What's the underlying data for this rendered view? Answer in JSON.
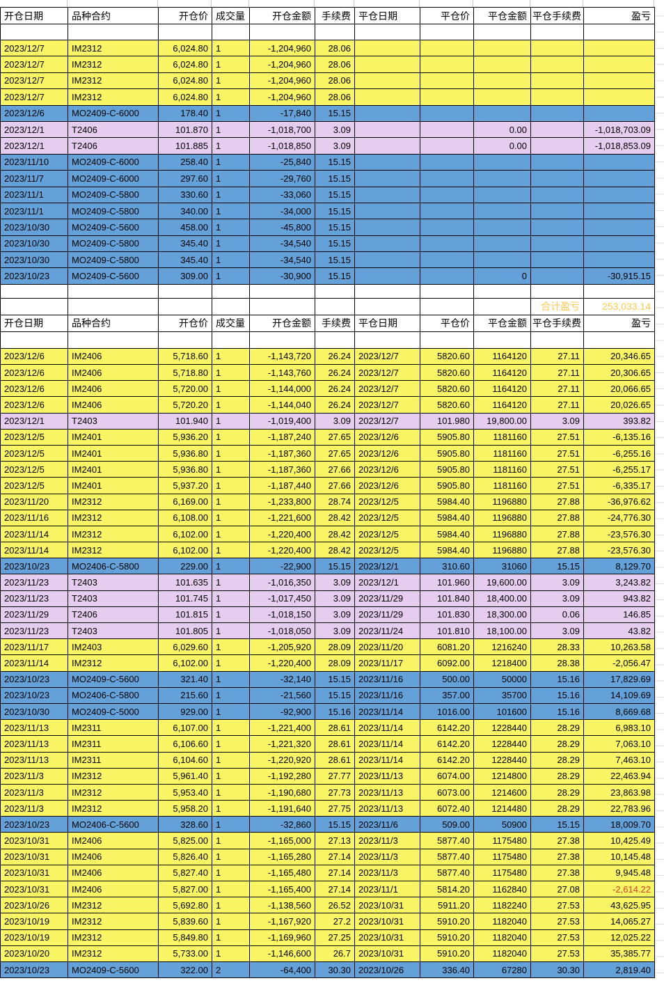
{
  "header": {
    "cols": [
      "开仓日期",
      "品种合约",
      "开仓价",
      "成交量",
      "开仓金额",
      "手续费",
      "平仓日期",
      "平仓价",
      "平仓金额",
      "平仓手续费",
      "盈亏"
    ]
  },
  "summary": {
    "label": "合计盈亏",
    "value": "253,033.14"
  },
  "colors": {
    "band_yellow": "#FAF565",
    "band_blue": "#64A1D9",
    "band_pink": "#E6CCEF",
    "total_bg": "#CF4F2E",
    "total_text": "#FFC94F",
    "negative_highlight": "#CC4125",
    "gridline": "#000000"
  },
  "table1": {
    "rows": [
      {
        "color": "yellow",
        "cells": [
          "2023/12/7",
          "IM2312",
          "6,024.80",
          "1",
          "-1,204,960",
          "28.06",
          "",
          "",
          "",
          "",
          ""
        ]
      },
      {
        "color": "yellow",
        "cells": [
          "2023/12/7",
          "IM2312",
          "6,024.80",
          "1",
          "-1,204,960",
          "28.06",
          "",
          "",
          "",
          "",
          ""
        ]
      },
      {
        "color": "yellow",
        "cells": [
          "2023/12/7",
          "IM2312",
          "6,024.80",
          "1",
          "-1,204,960",
          "28.06",
          "",
          "",
          "",
          "",
          ""
        ]
      },
      {
        "color": "yellow",
        "cells": [
          "2023/12/7",
          "IM2312",
          "6,024.80",
          "1",
          "-1,204,960",
          "28.06",
          "",
          "",
          "",
          "",
          ""
        ]
      },
      {
        "color": "blue",
        "cells": [
          "2023/12/6",
          "MO2409-C-6000",
          "178.40",
          "1",
          "-17,840",
          "15.15",
          "",
          "",
          "",
          "",
          ""
        ]
      },
      {
        "color": "pink",
        "cells": [
          "2023/12/1",
          "T2406",
          "101.870",
          "1",
          "-1,018,700",
          "3.09",
          "",
          "",
          "0.00",
          "",
          "-1,018,703.09"
        ]
      },
      {
        "color": "pink",
        "cells": [
          "2023/12/1",
          "T2406",
          "101.885",
          "1",
          "-1,018,850",
          "3.09",
          "",
          "",
          "0.00",
          "",
          "-1,018,853.09"
        ]
      },
      {
        "color": "blue",
        "cells": [
          "2023/11/10",
          "MO2409-C-6000",
          "258.40",
          "1",
          "-25,840",
          "15.15",
          "",
          "",
          "",
          "",
          ""
        ]
      },
      {
        "color": "blue",
        "cells": [
          "2023/11/7",
          "MO2409-C-6000",
          "297.60",
          "1",
          "-29,760",
          "15.15",
          "",
          "",
          "",
          "",
          ""
        ]
      },
      {
        "color": "blue",
        "cells": [
          "2023/11/1",
          "MO2409-C-5800",
          "330.60",
          "1",
          "-33,060",
          "15.15",
          "",
          "",
          "",
          "",
          ""
        ]
      },
      {
        "color": "blue",
        "cells": [
          "2023/11/1",
          "MO2409-C-5800",
          "340.00",
          "1",
          "-34,000",
          "15.15",
          "",
          "",
          "",
          "",
          ""
        ]
      },
      {
        "color": "blue",
        "cells": [
          "2023/10/30",
          "MO2409-C-5600",
          "458.00",
          "1",
          "-45,800",
          "15.15",
          "",
          "",
          "",
          "",
          ""
        ]
      },
      {
        "color": "blue",
        "cells": [
          "2023/10/30",
          "MO2409-C-5800",
          "345.40",
          "1",
          "-34,540",
          "15.15",
          "",
          "",
          "",
          "",
          ""
        ]
      },
      {
        "color": "blue",
        "cells": [
          "2023/10/30",
          "MO2409-C-5800",
          "345.40",
          "1",
          "-34,540",
          "15.15",
          "",
          "",
          "",
          "",
          ""
        ]
      },
      {
        "color": "blue",
        "cells": [
          "2023/10/23",
          "MO2409-C-5600",
          "309.00",
          "1",
          "-30,900",
          "15.15",
          "",
          "",
          "0",
          "",
          "-30,915.15"
        ]
      }
    ]
  },
  "table2": {
    "rows": [
      {
        "color": "yellow",
        "cells": [
          "2023/12/6",
          "IM2406",
          "5,718.60",
          "1",
          "-1,143,720",
          "26.24",
          "2023/12/7",
          "5820.60",
          "1164120",
          "27.11",
          "20,346.65"
        ]
      },
      {
        "color": "yellow",
        "cells": [
          "2023/12/6",
          "IM2406",
          "5,718.80",
          "1",
          "-1,143,760",
          "26.24",
          "2023/12/7",
          "5820.60",
          "1164120",
          "27.11",
          "20,306.65"
        ]
      },
      {
        "color": "yellow",
        "cells": [
          "2023/12/6",
          "IM2406",
          "5,720.00",
          "1",
          "-1,144,000",
          "26.24",
          "2023/12/7",
          "5820.60",
          "1164120",
          "27.11",
          "20,066.65"
        ]
      },
      {
        "color": "yellow",
        "cells": [
          "2023/12/6",
          "IM2406",
          "5,720.20",
          "1",
          "-1,144,040",
          "26.24",
          "2023/12/7",
          "5820.60",
          "1164120",
          "27.11",
          "20,026.65"
        ]
      },
      {
        "color": "pink",
        "cells": [
          "2023/12/1",
          "T2403",
          "101.940",
          "1",
          "-1,019,400",
          "3.09",
          "2023/12/7",
          "101.980",
          "19,800.00",
          "3.09",
          "393.82"
        ]
      },
      {
        "color": "yellow",
        "cells": [
          "2023/12/5",
          "IM2401",
          "5,936.20",
          "1",
          "-1,187,240",
          "27.65",
          "2023/12/6",
          "5905.80",
          "1181160",
          "27.51",
          "-6,135.16"
        ]
      },
      {
        "color": "yellow",
        "cells": [
          "2023/12/5",
          "IM2401",
          "5,936.80",
          "1",
          "-1,187,360",
          "27.65",
          "2023/12/6",
          "5905.80",
          "1181160",
          "27.51",
          "-6,255.16"
        ]
      },
      {
        "color": "yellow",
        "cells": [
          "2023/12/5",
          "IM2401",
          "5,936.80",
          "1",
          "-1,187,360",
          "27.66",
          "2023/12/6",
          "5905.80",
          "1181160",
          "27.51",
          "-6,255.17"
        ]
      },
      {
        "color": "yellow",
        "cells": [
          "2023/12/5",
          "IM2401",
          "5,937.20",
          "1",
          "-1,187,440",
          "27.66",
          "2023/12/6",
          "5905.80",
          "1181160",
          "27.51",
          "-6,335.17"
        ]
      },
      {
        "color": "yellow",
        "cells": [
          "2023/11/20",
          "IM2312",
          "6,169.00",
          "1",
          "-1,233,800",
          "28.74",
          "2023/12/5",
          "5984.40",
          "1196880",
          "27.88",
          "-36,976.62"
        ]
      },
      {
        "color": "yellow",
        "cells": [
          "2023/11/16",
          "IM2312",
          "6,108.00",
          "1",
          "-1,221,600",
          "28.42",
          "2023/12/5",
          "5984.40",
          "1196880",
          "27.88",
          "-24,776.30"
        ]
      },
      {
        "color": "yellow",
        "cells": [
          "2023/11/14",
          "IM2312",
          "6,102.00",
          "1",
          "-1,220,400",
          "28.42",
          "2023/12/5",
          "5984.40",
          "1196880",
          "27.88",
          "-23,576.30"
        ]
      },
      {
        "color": "yellow",
        "cells": [
          "2023/11/14",
          "IM2312",
          "6,102.00",
          "1",
          "-1,220,400",
          "28.42",
          "2023/12/5",
          "5984.40",
          "1196880",
          "27.88",
          "-23,576.30"
        ]
      },
      {
        "color": "blue",
        "cells": [
          "2023/10/23",
          "MO2406-C-5800",
          "229.00",
          "1",
          "-22,900",
          "15.15",
          "2023/12/1",
          "310.60",
          "31060",
          "15.15",
          "8,129.70"
        ]
      },
      {
        "color": "pink",
        "cells": [
          "2023/11/23",
          "T2403",
          "101.635",
          "1",
          "-1,016,350",
          "3.09",
          "2023/12/1",
          "101.960",
          "19,600.00",
          "3.09",
          "3,243.82"
        ]
      },
      {
        "color": "pink",
        "cells": [
          "2023/11/23",
          "T2403",
          "101.745",
          "1",
          "-1,017,450",
          "3.09",
          "2023/11/29",
          "101.840",
          "18,400.00",
          "3.09",
          "943.82"
        ]
      },
      {
        "color": "pink",
        "cells": [
          "2023/11/29",
          "T2406",
          "101.815",
          "1",
          "-1,018,150",
          "3.09",
          "2023/11/29",
          "101.830",
          "18,300.00",
          "0.06",
          "146.85"
        ]
      },
      {
        "color": "pink",
        "cells": [
          "2023/11/23",
          "T2403",
          "101.805",
          "1",
          "-1,018,050",
          "3.09",
          "2023/11/24",
          "101.810",
          "18,100.00",
          "3.09",
          "43.82"
        ]
      },
      {
        "color": "yellow",
        "cells": [
          "2023/11/17",
          "IM2403",
          "6,029.60",
          "1",
          "-1,205,920",
          "28.09",
          "2023/11/20",
          "6081.20",
          "1216240",
          "28.33",
          "10,263.58"
        ]
      },
      {
        "color": "yellow",
        "cells": [
          "2023/11/14",
          "IM2312",
          "6,102.00",
          "1",
          "-1,220,400",
          "28.09",
          "2023/11/17",
          "6092.00",
          "1218400",
          "28.38",
          "-2,056.47"
        ]
      },
      {
        "color": "blue",
        "cells": [
          "2023/10/23",
          "MO2409-C-5600",
          "321.40",
          "1",
          "-32,140",
          "15.15",
          "2023/11/16",
          "500.00",
          "50000",
          "15.16",
          "17,829.69"
        ]
      },
      {
        "color": "blue",
        "cells": [
          "2023/10/23",
          "MO2406-C-5800",
          "215.60",
          "1",
          "-21,560",
          "15.15",
          "2023/11/16",
          "357.00",
          "35700",
          "15.16",
          "14,109.69"
        ]
      },
      {
        "color": "blue",
        "cells": [
          "2023/10/30",
          "MO2409-C-5000",
          "929.00",
          "1",
          "-92,900",
          "15.16",
          "2023/11/14",
          "1016.00",
          "101600",
          "15.16",
          "8,669.68"
        ]
      },
      {
        "color": "yellow",
        "cells": [
          "2023/11/13",
          "IM2311",
          "6,107.00",
          "1",
          "-1,221,400",
          "28.61",
          "2023/11/14",
          "6142.20",
          "1228440",
          "28.29",
          "6,983.10"
        ]
      },
      {
        "color": "yellow",
        "cells": [
          "2023/11/13",
          "IM2311",
          "6,106.60",
          "1",
          "-1,221,320",
          "28.61",
          "2023/11/14",
          "6142.20",
          "1228440",
          "28.29",
          "7,063.10"
        ]
      },
      {
        "color": "yellow",
        "cells": [
          "2023/11/13",
          "IM2311",
          "6,104.60",
          "1",
          "-1,220,920",
          "28.61",
          "2023/11/14",
          "6142.20",
          "1228440",
          "28.29",
          "7,463.10"
        ]
      },
      {
        "color": "yellow",
        "cells": [
          "2023/11/3",
          "IM2312",
          "5,961.40",
          "1",
          "-1,192,280",
          "27.77",
          "2023/11/13",
          "6074.00",
          "1214800",
          "28.29",
          "22,463.94"
        ]
      },
      {
        "color": "yellow",
        "cells": [
          "2023/11/3",
          "IM2312",
          "5,953.40",
          "1",
          "-1,190,680",
          "27.73",
          "2023/11/13",
          "6073.00",
          "1214600",
          "28.29",
          "23,863.98"
        ]
      },
      {
        "color": "yellow",
        "cells": [
          "2023/11/3",
          "IM2312",
          "5,958.20",
          "1",
          "-1,191,640",
          "27.75",
          "2023/11/13",
          "6072.40",
          "1214480",
          "28.29",
          "22,783.96"
        ]
      },
      {
        "color": "blue",
        "cells": [
          "2023/10/23",
          "MO2406-C-5600",
          "328.60",
          "1",
          "-32,860",
          "15.15",
          "2023/11/6",
          "509.00",
          "50900",
          "15.15",
          "18,009.70"
        ]
      },
      {
        "color": "yellow",
        "cells": [
          "2023/10/31",
          "IM2406",
          "5,825.00",
          "1",
          "-1,165,000",
          "27.13",
          "2023/11/3",
          "5877.40",
          "1175480",
          "27.38",
          "10,425.49"
        ]
      },
      {
        "color": "yellow",
        "cells": [
          "2023/10/31",
          "IM2406",
          "5,826.40",
          "1",
          "-1,165,280",
          "27.14",
          "2023/11/3",
          "5877.40",
          "1175480",
          "27.38",
          "10,145.48"
        ]
      },
      {
        "color": "yellow",
        "cells": [
          "2023/10/31",
          "IM2406",
          "5,827.40",
          "1",
          "-1,165,480",
          "27.14",
          "2023/11/3",
          "5877.40",
          "1175480",
          "27.38",
          "9,945.48"
        ]
      },
      {
        "color": "yellow",
        "pl_red": true,
        "cells": [
          "2023/10/31",
          "IM2406",
          "5,827.00",
          "1",
          "-1,165,400",
          "27.14",
          "2023/11/1",
          "5814.20",
          "1162840",
          "27.08",
          "-2,614.22"
        ]
      },
      {
        "color": "yellow",
        "cells": [
          "2023/10/26",
          "IM2312",
          "5,692.80",
          "1",
          "-1,138,560",
          "26.52",
          "2023/10/31",
          "5911.20",
          "1182240",
          "27.53",
          "43,625.95"
        ]
      },
      {
        "color": "yellow",
        "cells": [
          "2023/10/19",
          "IM2312",
          "5,839.60",
          "1",
          "-1,167,920",
          "27.2",
          "2023/10/31",
          "5910.20",
          "1182040",
          "27.53",
          "14,065.27"
        ]
      },
      {
        "color": "yellow",
        "cells": [
          "2023/10/19",
          "IM2312",
          "5,849.80",
          "1",
          "-1,169,960",
          "27.25",
          "2023/10/31",
          "5910.20",
          "1182040",
          "27.53",
          "12,025.22"
        ]
      },
      {
        "color": "yellow",
        "cells": [
          "2023/10/20",
          "IM2312",
          "5,733.00",
          "1",
          "-1,146,600",
          "26.7",
          "2023/10/31",
          "5910.20",
          "1182040",
          "27.53",
          "35,385.77"
        ]
      },
      {
        "color": "blue",
        "cells": [
          "2023/10/23",
          "MO2409-C-5600",
          "322.00",
          "2",
          "-64,400",
          "30.30",
          "2023/10/26",
          "336.40",
          "67280",
          "30.30",
          "2,819.40"
        ]
      }
    ]
  }
}
